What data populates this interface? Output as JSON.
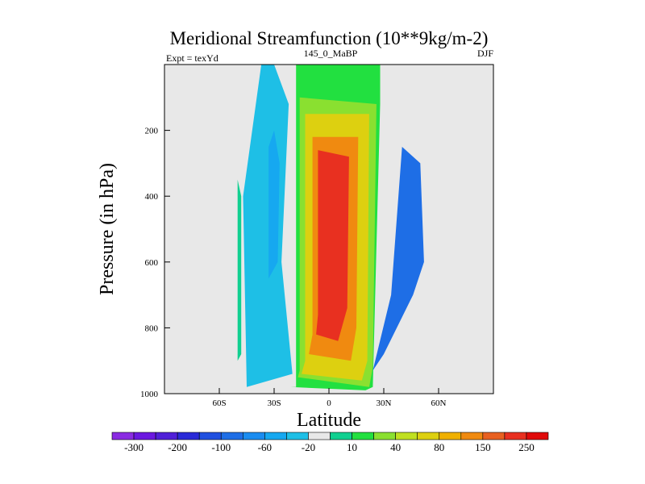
{
  "chart_data": {
    "type": "heatmap",
    "title": "Meridional Streamfunction (10**9kg/m-2)",
    "subtitle_left": "Expt = texYd",
    "subtitle_center": "145_0_MaBP",
    "subtitle_right": "DJF",
    "xlabel": "Latitude",
    "ylabel": "Pressure (in hPa)",
    "xlim": [
      -90,
      90
    ],
    "ylim": [
      1000,
      0
    ],
    "x_ticks": [
      {
        "value": -60,
        "label": "60S"
      },
      {
        "value": -30,
        "label": "30S"
      },
      {
        "value": 0,
        "label": "0"
      },
      {
        "value": 30,
        "label": "30N"
      },
      {
        "value": 60,
        "label": "60N"
      }
    ],
    "y_ticks": [
      {
        "value": 200,
        "label": "200"
      },
      {
        "value": 400,
        "label": "400"
      },
      {
        "value": 600,
        "label": "600"
      },
      {
        "value": 800,
        "label": "800"
      },
      {
        "value": 1000,
        "label": "1000"
      }
    ],
    "background_color": "#e8e8e8",
    "colorbar": {
      "colors": [
        "#8a2be2",
        "#6b18e0",
        "#5020d8",
        "#2a2ad8",
        "#2050e0",
        "#1e6ee6",
        "#1a8cf0",
        "#16a8f0",
        "#1ebfe6",
        "#e8e8e8",
        "#10d090",
        "#22e040",
        "#8ae030",
        "#c0e020",
        "#ddd010",
        "#f0b000",
        "#f08a10",
        "#e86020",
        "#e83020",
        "#e00a0a"
      ],
      "labels": [
        "-300",
        "-200",
        "-100",
        "-60",
        "-20",
        "10",
        "40",
        "80",
        "150",
        "250"
      ]
    },
    "contours": [
      {
        "level": "-20 to -10 (light blue)",
        "color": "#1ebfe6",
        "lat": [
          -45,
          -20,
          -26,
          -22,
          -30,
          -37,
          -47
        ],
        "p": [
          980,
          940,
          600,
          120,
          0,
          0,
          400
        ]
      },
      {
        "level": "-60 to -20 (blue)",
        "color": "#16a8f0",
        "lat": [
          -33,
          -28,
          -27,
          -30,
          -33
        ],
        "p": [
          650,
          600,
          300,
          200,
          250
        ]
      },
      {
        "level": "10 to 40 (teal)",
        "color": "#10d090",
        "lat": [
          -50,
          -48,
          -48,
          -50
        ],
        "p": [
          900,
          880,
          400,
          350
        ]
      },
      {
        "level": "10 to 40 (green positive cell)",
        "color": "#22e040",
        "lat": [
          -21,
          -18,
          -18,
          -12,
          32,
          28,
          28,
          24,
          20
        ],
        "p": [
          980,
          980,
          0,
          0,
          0,
          0,
          120,
          980,
          990
        ]
      },
      {
        "level": "40 to 80 (lime)",
        "color": "#8ae030",
        "lat": [
          -17,
          -16,
          -16,
          26,
          24,
          22
        ],
        "p": [
          950,
          930,
          100,
          120,
          920,
          980
        ]
      },
      {
        "level": "80 to 150 (yellow/orange)",
        "color": "#ddd010",
        "lat": [
          -15,
          -13,
          -13,
          22,
          21,
          18
        ],
        "p": [
          940,
          900,
          150,
          150,
          900,
          960
        ]
      },
      {
        "level": "150 to 250 (orange)",
        "color": "#f08a10",
        "lat": [
          -11,
          -9,
          -9,
          16,
          15,
          12
        ],
        "p": [
          880,
          820,
          220,
          220,
          800,
          900
        ]
      },
      {
        "level": "> 250 (red core)",
        "color": "#e83020",
        "lat": [
          -7,
          -6,
          -6,
          11,
          10,
          5
        ],
        "p": [
          820,
          760,
          260,
          280,
          740,
          840
        ]
      },
      {
        "level": "-20 to -60 (blue north)",
        "color": "#1e6ee6",
        "lat": [
          24,
          30,
          46,
          52,
          50,
          40,
          34
        ],
        "p": [
          930,
          880,
          700,
          600,
          300,
          250,
          700
        ]
      }
    ]
  }
}
